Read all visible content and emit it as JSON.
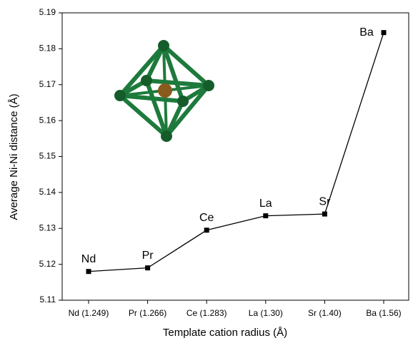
{
  "chart_data": {
    "type": "line",
    "x_label": "Template cation radius (Å)",
    "y_label": "Average Ni-Ni distance (Å)",
    "categories": [
      "Nd (1.249)",
      "Pr (1.266)",
      "Ce (1.283)",
      "La (1.30)",
      "Sr (1.40)",
      "Ba (1.56)"
    ],
    "point_labels": [
      "Nd",
      "Pr",
      "Ce",
      "La",
      "Sr",
      "Ba"
    ],
    "values": [
      5.118,
      5.119,
      5.1295,
      5.1335,
      5.134,
      5.1845
    ],
    "color": "#000000",
    "ylim": [
      5.11,
      5.19
    ],
    "yticks": [
      5.11,
      5.12,
      5.13,
      5.14,
      5.15,
      5.16,
      5.17,
      5.18,
      5.19
    ]
  }
}
